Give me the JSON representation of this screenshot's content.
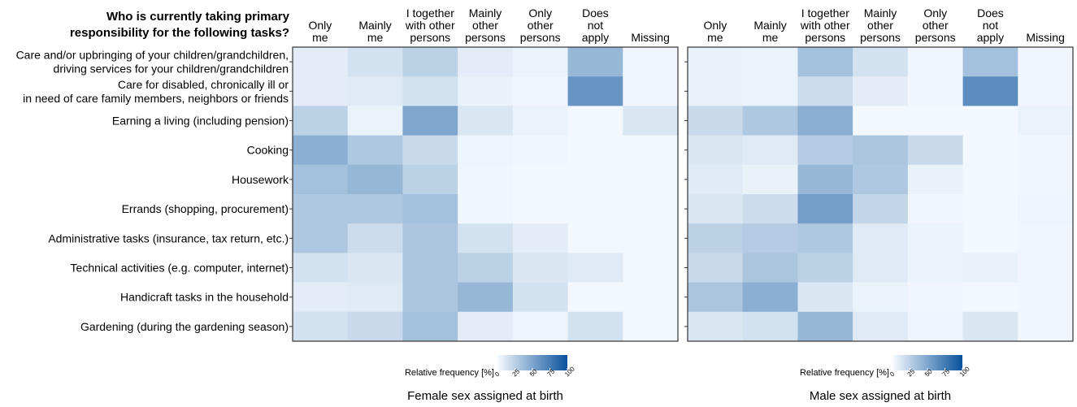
{
  "chart_data": {
    "type": "heatmap",
    "question": "Who is currently taking primary\nresponsibility for the following tasks?",
    "columns": [
      "Only\nme",
      "Mainly\nme",
      "I together\nwith other\npersons",
      "Mainly\nother\npersons",
      "Only\nother\npersons",
      "Does\nnot\napply",
      "Missing"
    ],
    "rows": [
      "Care and/or upbringing of your children/grandchildren,\ndriving services for your children/grandchildren",
      "Care for disabled, chronically ill or\nin need of care family members, neighbors or friends",
      "Earning a living (including pension)",
      "Cooking",
      "Housework",
      "Errands (shopping, procurement)",
      "Administrative tasks (insurance, tax return, etc.)",
      "Technical activities (e.g. computer, internet)",
      "Handicraft tasks in the household",
      "Gardening (during the gardening season)"
    ],
    "legend": {
      "title": "Relative frequency [%]",
      "min": 0,
      "max": 100,
      "ticks": [
        "0",
        "25",
        "50",
        "75",
        "100"
      ],
      "color_low": "#f7fbff",
      "color_high": "#08519c"
    },
    "panels": [
      {
        "caption": "Female sex assigned at birth",
        "values": [
          [
            8,
            15,
            25,
            8,
            5,
            40,
            3
          ],
          [
            8,
            10,
            15,
            6,
            3,
            60,
            3
          ],
          [
            25,
            5,
            50,
            12,
            5,
            2,
            12
          ],
          [
            45,
            30,
            20,
            4,
            3,
            2,
            2
          ],
          [
            35,
            40,
            25,
            3,
            2,
            2,
            2
          ],
          [
            30,
            30,
            35,
            3,
            2,
            2,
            2
          ],
          [
            30,
            18,
            32,
            15,
            8,
            2,
            2
          ],
          [
            15,
            12,
            32,
            25,
            12,
            10,
            2
          ],
          [
            8,
            10,
            32,
            40,
            15,
            2,
            2
          ],
          [
            15,
            20,
            35,
            8,
            4,
            15,
            2
          ]
        ]
      },
      {
        "caption": "Male sex assigned at birth",
        "values": [
          [
            6,
            5,
            35,
            15,
            3,
            35,
            3
          ],
          [
            6,
            5,
            18,
            8,
            3,
            65,
            3
          ],
          [
            20,
            30,
            45,
            2,
            2,
            2,
            5
          ],
          [
            12,
            10,
            28,
            32,
            20,
            2,
            3
          ],
          [
            10,
            6,
            40,
            30,
            6,
            2,
            3
          ],
          [
            12,
            18,
            55,
            22,
            3,
            2,
            4
          ],
          [
            25,
            28,
            30,
            10,
            5,
            2,
            3
          ],
          [
            20,
            32,
            25,
            10,
            5,
            6,
            3
          ],
          [
            32,
            45,
            12,
            5,
            3,
            2,
            3
          ],
          [
            12,
            15,
            40,
            10,
            4,
            12,
            3
          ]
        ]
      }
    ]
  }
}
